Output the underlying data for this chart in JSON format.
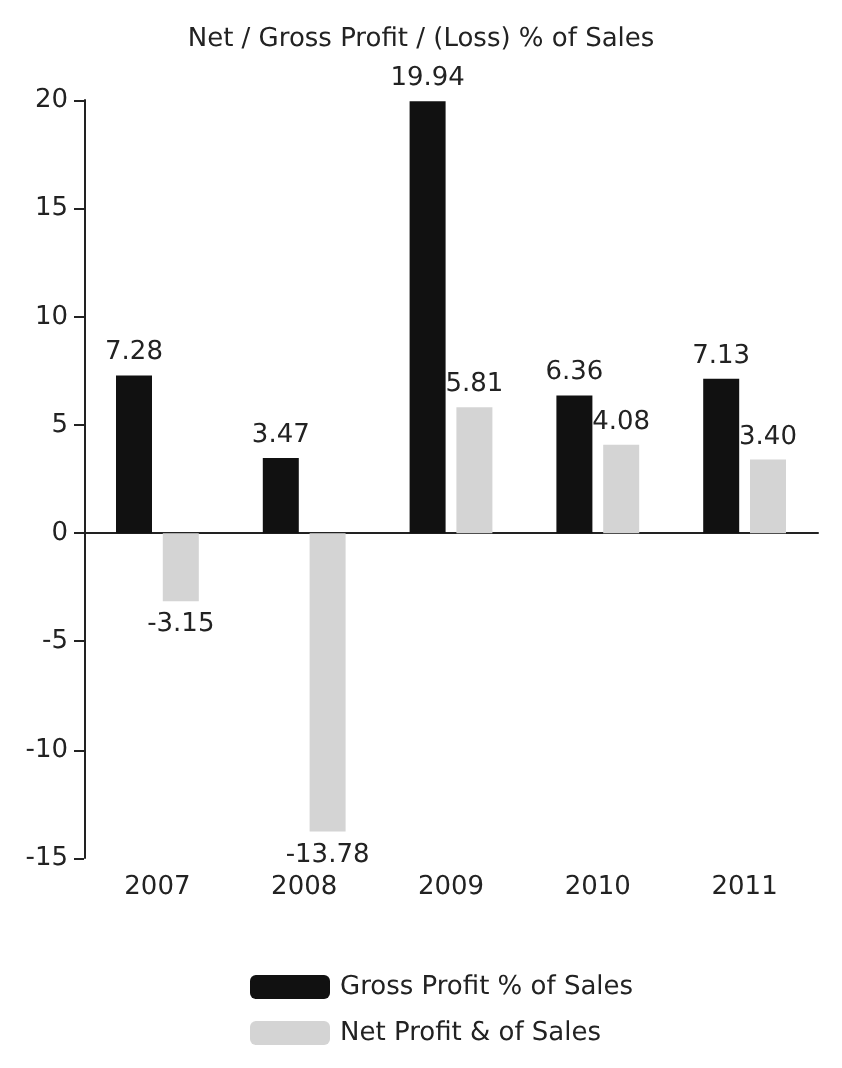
{
  "chart_data": {
    "type": "bar",
    "title": "Net / Gross Profit / (Loss) % of Sales",
    "categories": [
      "2007",
      "2008",
      "2009",
      "2010",
      "2011"
    ],
    "series": [
      {
        "name": "Gross Profit % of Sales",
        "color": "#111111",
        "values": [
          7.28,
          3.47,
          19.94,
          6.36,
          7.13
        ],
        "value_labels": [
          "7.28",
          "3.47",
          "19.94",
          "6.36",
          "7.13"
        ]
      },
      {
        "name": "Net Profit & of Sales",
        "color": "#d4d4d4",
        "values": [
          -3.15,
          -13.78,
          5.81,
          4.08,
          3.4
        ],
        "value_labels": [
          "-3.15",
          "-13.78",
          "5.81",
          "4.08",
          "3.40"
        ]
      }
    ],
    "ylim": [
      -15,
      20
    ],
    "yticks": [
      -15,
      -10,
      -5,
      0,
      5,
      10,
      15,
      20
    ],
    "legend": "bottom"
  }
}
